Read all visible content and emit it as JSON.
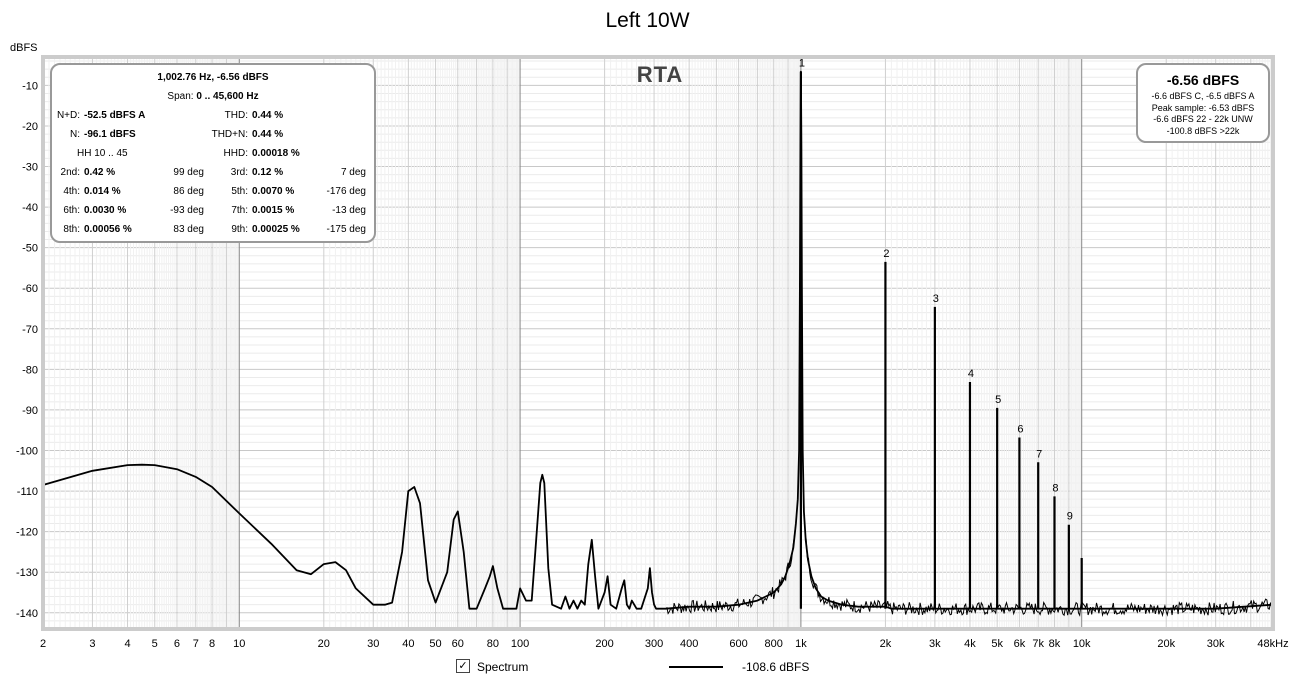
{
  "chart_data": {
    "type": "line",
    "title": "Left 10W",
    "ylabel": "dBFS",
    "xscale": "log",
    "xlim": [
      2,
      48000
    ],
    "ylim": [
      -144,
      -3
    ],
    "grid": true,
    "x_ticks": [
      {
        "v": 2,
        "t": "2"
      },
      {
        "v": 3,
        "t": "3"
      },
      {
        "v": 4,
        "t": "4"
      },
      {
        "v": 5,
        "t": "5"
      },
      {
        "v": 6,
        "t": "6"
      },
      {
        "v": 7,
        "t": "7"
      },
      {
        "v": 8,
        "t": "8"
      },
      {
        "v": 10,
        "t": "10"
      },
      {
        "v": 20,
        "t": "20"
      },
      {
        "v": 30,
        "t": "30"
      },
      {
        "v": 40,
        "t": "40"
      },
      {
        "v": 50,
        "t": "50"
      },
      {
        "v": 60,
        "t": "60"
      },
      {
        "v": 80,
        "t": "80"
      },
      {
        "v": 100,
        "t": "100"
      },
      {
        "v": 200,
        "t": "200"
      },
      {
        "v": 300,
        "t": "300"
      },
      {
        "v": 400,
        "t": "400"
      },
      {
        "v": 600,
        "t": "600"
      },
      {
        "v": 800,
        "t": "800"
      },
      {
        "v": 1000,
        "t": "1k"
      },
      {
        "v": 2000,
        "t": "2k"
      },
      {
        "v": 3000,
        "t": "3k"
      },
      {
        "v": 4000,
        "t": "4k"
      },
      {
        "v": 5000,
        "t": "5k"
      },
      {
        "v": 6000,
        "t": "6k"
      },
      {
        "v": 7000,
        "t": "7k"
      },
      {
        "v": 8000,
        "t": "8k"
      },
      {
        "v": 10000,
        "t": "10k"
      },
      {
        "v": 20000,
        "t": "20k"
      },
      {
        "v": 30000,
        "t": "30k"
      },
      {
        "v": 48000,
        "t": "48kHz"
      }
    ],
    "y_ticks": [
      -10,
      -20,
      -30,
      -40,
      -50,
      -60,
      -70,
      -80,
      -90,
      -100,
      -110,
      -120,
      -130,
      -140
    ],
    "series": [
      {
        "name": "Spectrum",
        "x": [
          2,
          3,
          4,
          4.5,
          5,
          6,
          7,
          8,
          10,
          13,
          16,
          18,
          20,
          22,
          24,
          26,
          30,
          33,
          35,
          38,
          40,
          42,
          44,
          47,
          50,
          55,
          58,
          60,
          63,
          66,
          70,
          75,
          78,
          80,
          83,
          87,
          92,
          97,
          100,
          105,
          110,
          113,
          118,
          120,
          122,
          126,
          130,
          140,
          145,
          150,
          155,
          160,
          165,
          170,
          175,
          180,
          185,
          190,
          195,
          200,
          205,
          210,
          220,
          230,
          235,
          240,
          245,
          250,
          260,
          270,
          285,
          290,
          295,
          300,
          305,
          310,
          330,
          400,
          500,
          600,
          700,
          750,
          800,
          850,
          880,
          910,
          940,
          960,
          975,
          985,
          992,
          996,
          1000,
          1004,
          1008,
          1015,
          1025,
          1040,
          1060,
          1090,
          1130,
          1180,
          1250,
          1400,
          1600,
          1900,
          2000,
          2100,
          2500,
          3000,
          3500,
          4000,
          4500,
          5000,
          5500,
          6000,
          6500,
          7000,
          7500,
          8000,
          8700,
          9000,
          9300,
          10000,
          10300,
          11000,
          15000,
          20000,
          30000,
          48000
        ],
        "y": [
          -108.5,
          -105,
          -103.6,
          -103.5,
          -103.6,
          -104.6,
          -106.5,
          -109,
          -115.5,
          -123,
          -129.5,
          -130.5,
          -128,
          -127.5,
          -129.5,
          -134,
          -138,
          -138,
          -137.5,
          -125,
          -110,
          -109,
          -113,
          -132,
          -137.5,
          -130,
          -117,
          -115,
          -125,
          -139,
          -139,
          -134,
          -131,
          -128.5,
          -134,
          -139,
          -139,
          -139,
          -134,
          -137,
          -137,
          -126,
          -108,
          -106,
          -108,
          -129,
          -138,
          -139,
          -136,
          -139,
          -137,
          -139,
          -137,
          -138,
          -128,
          -122,
          -131,
          -139,
          -137,
          -135,
          -131,
          -138,
          -139,
          -134,
          -132,
          -138,
          -139,
          -137,
          -139,
          -139,
          -134,
          -129,
          -135,
          -138,
          -139,
          -139,
          -139,
          -138.5,
          -138.5,
          -138,
          -137,
          -136,
          -135,
          -133,
          -131,
          -128,
          -124,
          -118,
          -112,
          -100,
          -60,
          -25,
          -6.6,
          -25,
          -60,
          -100,
          -115,
          -122,
          -127,
          -131,
          -134,
          -136,
          -137,
          -138,
          -138.5,
          -138.5,
          -138.5,
          -139,
          -139,
          -139,
          -139,
          -139,
          -139,
          -139,
          -139,
          -139,
          -139,
          -139,
          -139,
          -139,
          -139,
          -139,
          -139,
          -139,
          -139,
          -139,
          -139,
          -139,
          -139,
          -138
        ]
      }
    ],
    "harmonics": [
      {
        "label": "1",
        "f": 1000,
        "db": -6.6
      },
      {
        "label": "2",
        "f": 2000,
        "db": -53.5
      },
      {
        "label": "3",
        "f": 3000,
        "db": -64.6
      },
      {
        "label": "4",
        "f": 4000,
        "db": -83.1
      },
      {
        "label": "5",
        "f": 5000,
        "db": -89.5
      },
      {
        "label": "6",
        "f": 6000,
        "db": -96.8
      },
      {
        "label": "7",
        "f": 7000,
        "db": -102.9
      },
      {
        "label": "8",
        "f": 8000,
        "db": -111.3
      },
      {
        "label": "9",
        "f": 9000,
        "db": -118.3
      },
      {
        "label": "",
        "f": 10000,
        "db": -126.5
      }
    ],
    "annotations": {
      "rta_label": "RTA",
      "info": {
        "peak": "1,002.76 Hz, -6.56 dBFS",
        "span_label": "Span:",
        "span_value": "0 .. 45,600 Hz",
        "nd_label": "N+D:",
        "nd_value": "-52.5 dBFS A",
        "thd_label": "THD:",
        "thd_value": "0.44 %",
        "n_label": "N:",
        "n_value": "-96.1 dBFS",
        "thdn_label": "THD+N:",
        "thdn_value": "0.44 %",
        "hh_label": "HH 10 .. 45",
        "hhd_label": "HHD:",
        "hhd_value": "0.00018 %",
        "rows": [
          {
            "l1": "2nd:",
            "v1": "0.42 %",
            "d1": "99 deg",
            "l2": "3rd:",
            "v2": "0.12 %",
            "d2": "7 deg"
          },
          {
            "l1": "4th:",
            "v1": "0.014 %",
            "d1": "86 deg",
            "l2": "5th:",
            "v2": "0.0070 %",
            "d2": "-176 deg"
          },
          {
            "l1": "6th:",
            "v1": "0.0030 %",
            "d1": "-93 deg",
            "l2": "7th:",
            "v2": "0.0015 %",
            "d2": "-13 deg"
          },
          {
            "l1": "8th:",
            "v1": "0.00056 %",
            "d1": "83 deg",
            "l2": "9th:",
            "v2": "0.00025 %",
            "d2": "-175 deg"
          }
        ]
      },
      "level": {
        "big": "-6.56 dBFS",
        "line1": "-6.6 dBFS C, -6.5 dBFS A",
        "line2": "Peak sample: -6.53 dBFS",
        "line3": "-6.6 dBFS 22 - 22k UNW",
        "line4": "-100.8 dBFS >22k"
      }
    },
    "legend": {
      "checkbox_mark": "✓",
      "label": "Spectrum",
      "value": "-108.6 dBFS"
    }
  }
}
